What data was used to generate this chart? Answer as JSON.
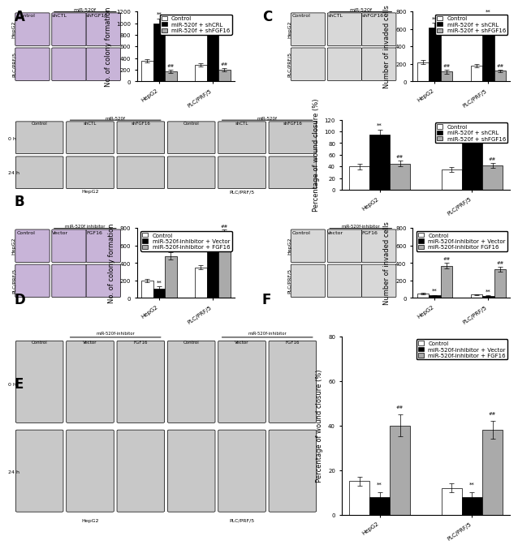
{
  "panel_A_bar": {
    "groups": [
      "HepG2",
      "PLC/PRF/5"
    ],
    "control": [
      350,
      280
    ],
    "shCRL": [
      1000,
      950
    ],
    "shFGF16": [
      175,
      200
    ],
    "shCRL_err": [
      80,
      70
    ],
    "shFGF16_err": [
      30,
      25
    ],
    "control_err": [
      30,
      25
    ],
    "ylabel": "No. of colony formation",
    "ymax": 1200,
    "yticks": [
      0,
      200,
      400,
      600,
      800,
      1000,
      1200
    ],
    "legend": [
      "Control",
      "miR-520f + shCRL",
      "miR-520f + shFGF16"
    ],
    "colors": [
      "white",
      "black",
      "#aaaaaa"
    ]
  },
  "panel_B_bar": {
    "groups": [
      "HepG2",
      "PLC/PRF/5"
    ],
    "control": [
      40,
      35
    ],
    "shCRL": [
      95,
      90
    ],
    "shFGF16": [
      45,
      42
    ],
    "shCRL_err": [
      8,
      7
    ],
    "shFGF16_err": [
      5,
      4
    ],
    "control_err": [
      5,
      4
    ],
    "ylabel": "Percentage of wound closure (%)",
    "ymax": 120,
    "yticks": [
      0,
      20,
      40,
      60,
      80,
      100,
      120
    ],
    "legend": [
      "Control",
      "miR-520f + shCRL",
      "miR-520f + shFGF16"
    ],
    "colors": [
      "white",
      "black",
      "#aaaaaa"
    ]
  },
  "panel_C_bar": {
    "groups": [
      "HepG2",
      "PLC/PRF/5"
    ],
    "control": [
      220,
      180
    ],
    "shCRL": [
      620,
      690
    ],
    "shFGF16": [
      110,
      120
    ],
    "shCRL_err": [
      50,
      60
    ],
    "shFGF16_err": [
      20,
      15
    ],
    "control_err": [
      20,
      18
    ],
    "ylabel": "Number of invaded cells",
    "ymax": 800,
    "yticks": [
      0,
      200,
      400,
      600,
      800
    ],
    "legend": [
      "Control",
      "miR-520f + shCRL",
      "miR-520f + shFGF16"
    ],
    "colors": [
      "white",
      "black",
      "#aaaaaa"
    ]
  },
  "panel_D_bar": {
    "groups": [
      "HepG2",
      "PLC/PRF/5"
    ],
    "control": [
      200,
      350
    ],
    "vector": [
      110,
      650
    ],
    "FGF16": [
      480,
      730
    ],
    "vector_err": [
      20,
      40
    ],
    "FGF16_err": [
      40,
      50
    ],
    "control_err": [
      20,
      25
    ],
    "ylabel": "No. of colony formation",
    "ymax": 800,
    "yticks": [
      0,
      200,
      400,
      600,
      800
    ],
    "legend": [
      "Control",
      "miR-520f-inhibitor + Vector",
      "miR-520f-inhibitor + FGF16"
    ],
    "colors": [
      "white",
      "black",
      "#aaaaaa"
    ]
  },
  "panel_E_bar": {
    "groups": [
      "HepG2",
      "PLC/PRF/5"
    ],
    "control": [
      15,
      12
    ],
    "vector": [
      8,
      8
    ],
    "FGF16": [
      40,
      38
    ],
    "vector_err": [
      2,
      2
    ],
    "FGF16_err": [
      5,
      4
    ],
    "control_err": [
      2,
      2
    ],
    "ylabel": "Percentage of wound closure (%)",
    "ymax": 80,
    "yticks": [
      0,
      20,
      40,
      60,
      80
    ],
    "legend": [
      "Control",
      "miR-520f-inhibitor + Vector",
      "miR-520f-inhibitor + FGF16"
    ],
    "colors": [
      "white",
      "black",
      "#aaaaaa"
    ]
  },
  "panel_F_bar": {
    "groups": [
      "HepG2",
      "PLC/PRF/5"
    ],
    "control": [
      50,
      40
    ],
    "vector": [
      30,
      25
    ],
    "FGF16": [
      370,
      330
    ],
    "vector_err": [
      5,
      4
    ],
    "FGF16_err": [
      30,
      25
    ],
    "control_err": [
      5,
      4
    ],
    "ylabel": "Number of invaded cells",
    "ymax": 800,
    "yticks": [
      0,
      200,
      400,
      600,
      800
    ],
    "legend": [
      "Control",
      "miR-520f-inhibitor + Vector",
      "miR-520f-inhibitor FGF16"
    ],
    "colors": [
      "white",
      "black",
      "#aaaaaa"
    ]
  },
  "figure_bg": "#ffffff",
  "panel_labels": [
    "A",
    "B",
    "C",
    "D",
    "E",
    "F"
  ],
  "label_fontsize": 12,
  "axis_fontsize": 6,
  "tick_fontsize": 5,
  "legend_fontsize": 5,
  "bar_width": 0.22,
  "edgecolor": "black"
}
